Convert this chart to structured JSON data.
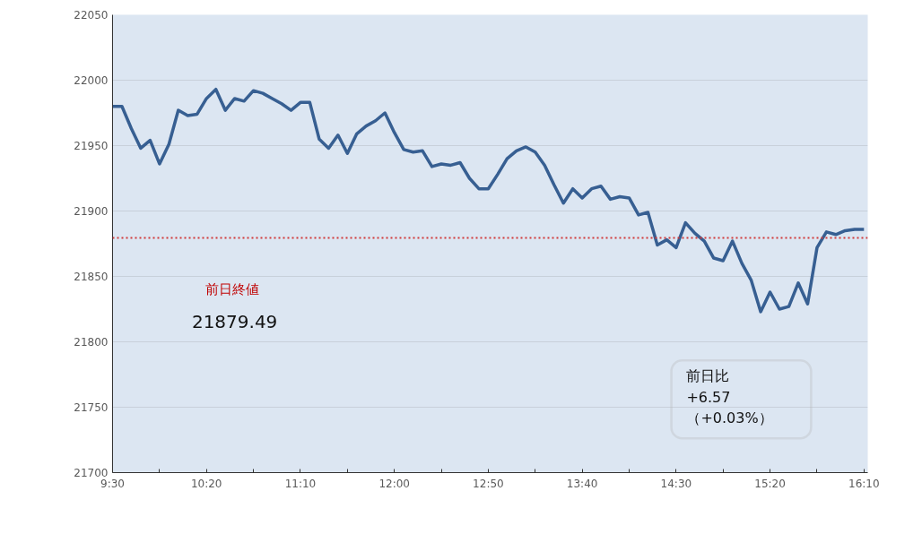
{
  "chart_data": {
    "type": "line",
    "x": [
      9.5,
      9.5833,
      9.6667,
      9.75,
      9.8333,
      9.9167,
      10,
      10.0833,
      10.1667,
      10.25,
      10.3333,
      10.4167,
      10.5,
      10.5833,
      10.6667,
      10.75,
      10.8333,
      10.9167,
      11,
      11.0833,
      11.1667,
      11.25,
      11.3333,
      11.4167,
      11.5,
      11.5833,
      11.6667,
      11.75,
      11.8333,
      11.9167,
      12,
      12.0833,
      12.1667,
      12.25,
      12.3333,
      12.4167,
      12.5,
      12.5833,
      12.6667,
      12.75,
      12.8333,
      12.9167,
      13,
      13.0833,
      13.1667,
      13.25,
      13.3333,
      13.4167,
      13.5,
      13.5833,
      13.6667,
      13.75,
      13.8333,
      13.9167,
      14,
      14.0833,
      14.1667,
      14.25,
      14.3333,
      14.4167,
      14.5,
      14.5833,
      14.6667,
      14.75,
      14.8333,
      14.9167,
      15,
      15.0833,
      15.1667,
      15.25,
      15.3333,
      15.4167,
      15.5,
      15.5833,
      15.6667,
      15.75,
      15.8333,
      15.9167,
      16,
      16.0833,
      16.1667
    ],
    "series": [
      {
        "color": "#375f92",
        "values": [
          21980,
          21980,
          21963,
          21948,
          21954,
          21936,
          21951,
          21977,
          21973,
          21974,
          21986,
          21993,
          21977,
          21986,
          21984,
          21992,
          21990,
          21986,
          21982,
          21977,
          21983,
          21983,
          21955,
          21948,
          21958,
          21944,
          21959,
          21965,
          21969,
          21975,
          21960,
          21947,
          21945,
          21946,
          21934,
          21936,
          21935,
          21937,
          21925,
          21917,
          21917,
          21928,
          21940,
          21946,
          21949,
          21945,
          21935,
          21920,
          21906,
          21917,
          21910,
          21917,
          21919,
          21909,
          21911,
          21910,
          21897,
          21899,
          21874,
          21878,
          21872,
          21891,
          21883,
          21877,
          21864,
          21862,
          21877,
          21860,
          21847,
          21823,
          21838,
          21825,
          21827,
          21845,
          21829,
          21872,
          21884,
          21882,
          21885,
          21886,
          21886
        ]
      }
    ],
    "xlim": [
      9.5,
      16.2
    ],
    "xticks": [
      {
        "value": 9.5,
        "label": "9:30"
      },
      {
        "value": 9.9167,
        "label": null
      },
      {
        "value": 10.3333,
        "label": "10:20"
      },
      {
        "value": 10.75,
        "label": null
      },
      {
        "value": 11.1667,
        "label": "11:10"
      },
      {
        "value": 11.5833,
        "label": null
      },
      {
        "value": 12,
        "label": "12:00"
      },
      {
        "value": 12.4167,
        "label": null
      },
      {
        "value": 12.8333,
        "label": "12:50"
      },
      {
        "value": 13.25,
        "label": null
      },
      {
        "value": 13.6667,
        "label": "13:40"
      },
      {
        "value": 14.0833,
        "label": null
      },
      {
        "value": 14.5,
        "label": "14:30"
      },
      {
        "value": 14.9167,
        "label": null
      },
      {
        "value": 15.3333,
        "label": "15:20"
      },
      {
        "value": 15.75,
        "label": null
      },
      {
        "value": 16.1667,
        "label": "16:10"
      }
    ],
    "ylim": [
      21700,
      22050
    ],
    "yticks": [
      21700,
      21750,
      21800,
      21850,
      21900,
      21950,
      22000,
      22050
    ],
    "grid": "y",
    "ref_lines": [
      {
        "axis": "y",
        "value": 21879.49,
        "color": "#d03a3a",
        "line_style": "dotted"
      }
    ],
    "annotations": [
      "前日終値",
      "21879.49",
      "前日比\n+6.57\n（+0.03%）"
    ]
  }
}
